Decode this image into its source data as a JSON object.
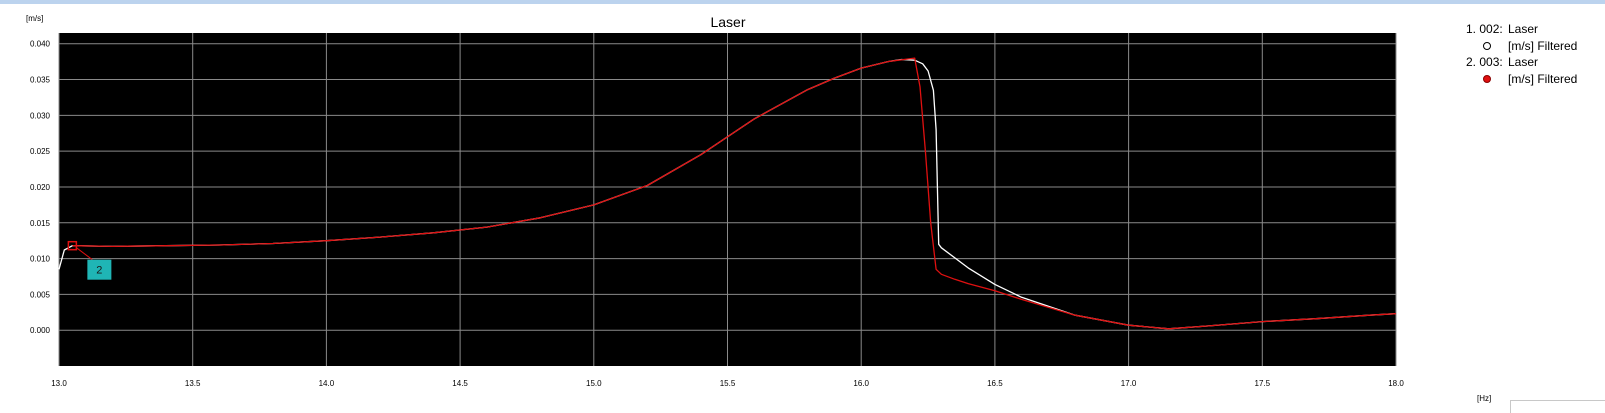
{
  "chart_data": {
    "type": "line",
    "title": "Laser",
    "ylabel": "[m/s]",
    "xlabel": "[Hz]",
    "xlim": [
      13.0,
      18.0
    ],
    "ylim": [
      -0.005,
      0.0415
    ],
    "xticks": [
      "13.0",
      "13.5",
      "14.0",
      "14.5",
      "15.0",
      "15.5",
      "16.0",
      "16.5",
      "17.0",
      "17.5",
      "18.0"
    ],
    "yticks": [
      "0.040",
      "0.035",
      "0.030",
      "0.025",
      "0.020",
      "0.015",
      "0.010",
      "0.005",
      "0.000"
    ],
    "grid": true,
    "legend_position": "right",
    "background": "#000000",
    "series": [
      {
        "legend_index": "1. 002:",
        "legend_name": "Laser",
        "legend_unit": "[m/s] Filtered",
        "color": "#ffffff",
        "marker": "open-circle",
        "x": [
          13.0,
          13.02,
          13.05,
          13.2,
          13.4,
          13.6,
          13.8,
          14.0,
          14.2,
          14.4,
          14.6,
          14.8,
          15.0,
          15.2,
          15.4,
          15.6,
          15.8,
          15.9,
          16.0,
          16.1,
          16.15,
          16.2,
          16.23,
          16.25,
          16.27,
          16.28,
          16.29,
          16.3,
          16.4,
          16.5,
          16.6,
          16.8,
          17.0,
          17.15,
          17.3,
          17.5,
          17.7,
          17.9,
          18.0
        ],
        "y": [
          0.0085,
          0.0112,
          0.0118,
          0.0117,
          0.0118,
          0.0119,
          0.0121,
          0.0125,
          0.013,
          0.0136,
          0.0144,
          0.0157,
          0.0175,
          0.0202,
          0.0245,
          0.0295,
          0.0336,
          0.0352,
          0.0366,
          0.0375,
          0.0378,
          0.0377,
          0.0372,
          0.0362,
          0.0335,
          0.028,
          0.012,
          0.0115,
          0.0087,
          0.0064,
          0.0046,
          0.0021,
          0.0007,
          0.0002,
          0.0006,
          0.0012,
          0.0016,
          0.0021,
          0.0023
        ]
      },
      {
        "legend_index": "2. 003:",
        "legend_name": "Laser",
        "legend_unit": "[m/s] Filtered",
        "color": "#e01010",
        "marker": "filled-circle",
        "x": [
          13.05,
          13.2,
          13.4,
          13.6,
          13.8,
          14.0,
          14.2,
          14.4,
          14.6,
          14.8,
          15.0,
          15.2,
          15.4,
          15.6,
          15.8,
          15.9,
          16.0,
          16.1,
          16.2,
          16.22,
          16.24,
          16.26,
          16.28,
          16.3,
          16.35,
          16.4,
          16.5,
          16.6,
          16.8,
          17.0,
          17.15,
          17.3,
          17.5,
          17.7,
          17.9,
          18.0
        ],
        "y": [
          0.0118,
          0.0117,
          0.0118,
          0.0119,
          0.0121,
          0.0125,
          0.013,
          0.0136,
          0.0144,
          0.0157,
          0.0175,
          0.0202,
          0.0245,
          0.0295,
          0.0336,
          0.0352,
          0.0366,
          0.0375,
          0.038,
          0.034,
          0.025,
          0.015,
          0.0085,
          0.0078,
          0.0071,
          0.0065,
          0.0055,
          0.0043,
          0.0021,
          0.0007,
          0.0002,
          0.0006,
          0.0012,
          0.0016,
          0.0021,
          0.0023
        ]
      }
    ],
    "annotations": [
      {
        "label": "2",
        "x": 13.05,
        "y": 0.0118,
        "box_color": "#1fb5b5",
        "marker_color": "#e01010"
      }
    ]
  }
}
